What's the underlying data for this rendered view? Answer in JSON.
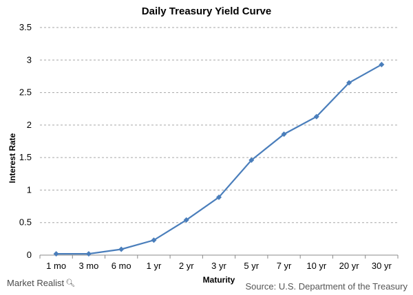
{
  "chart_data": {
    "type": "line",
    "title": "Daily Treasury Yield Curve",
    "xlabel": "Maturity",
    "ylabel": "Interest Rate",
    "categories": [
      "1 mo",
      "3 mo",
      "6 mo",
      "1 yr",
      "2 yr",
      "3 yr",
      "5 yr",
      "7 yr",
      "10 yr",
      "20 yr",
      "30 yr"
    ],
    "series": [
      {
        "values": [
          0.02,
          0.02,
          0.09,
          0.23,
          0.54,
          0.89,
          1.46,
          1.86,
          2.13,
          2.65,
          2.93
        ]
      }
    ],
    "ylim": [
      0,
      3.5
    ],
    "yticks": [
      "0",
      "0.5",
      "1",
      "1.5",
      "2",
      "2.5",
      "3",
      "3.5"
    ],
    "ytick_values": [
      0,
      0.5,
      1,
      1.5,
      2,
      2.5,
      3,
      3.5
    ],
    "grid": "horizontal dashed",
    "line_color": "#4a7ebb",
    "grid_color": "#a6a6a6",
    "marker": "diamond"
  },
  "footer": {
    "brand": "Market Realist",
    "brand_icon": "magnifier-icon",
    "source": "Source: U.S. Department of the Treasury"
  }
}
